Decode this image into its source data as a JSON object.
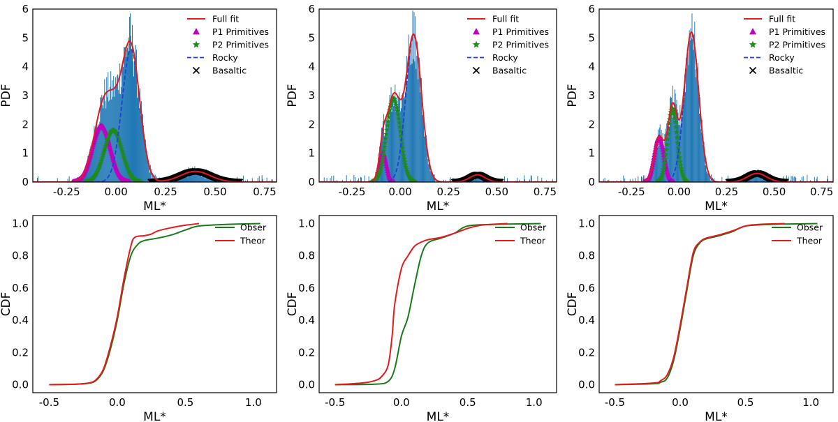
{
  "colors": {
    "full_fit": "#e41a1c",
    "p1": "#c000c0",
    "p2": "#1f8a1f",
    "rocky": "#1f3fd6",
    "basaltic": "#000000",
    "hist": "#1f77b4",
    "obser": "#1a7a1a",
    "theor": "#e41a1c"
  },
  "chart_data": [
    {
      "type": "area",
      "panel": "top-left",
      "xlabel": "ML*",
      "ylabel": "PDF",
      "xlim": [
        -0.42,
        0.81
      ],
      "ylim": [
        0,
        6
      ],
      "xticks": [
        "-0.25",
        "0.00",
        "0.25",
        "0.50",
        "0.75"
      ],
      "xtick_values": [
        -0.25,
        0,
        0.25,
        0.5,
        0.75
      ],
      "yticks": [
        "0",
        "1",
        "2",
        "3",
        "4",
        "5",
        "6"
      ],
      "ytick_values": [
        0,
        1,
        2,
        3,
        4,
        5,
        6
      ],
      "legend": {
        "placement": "top-right",
        "entries": [
          "Full fit",
          "P1 Primitives",
          "P2 Primitives",
          "Rocky",
          "Basaltic"
        ]
      },
      "components": [
        {
          "name": "P1 Primitives",
          "mu": -0.075,
          "sigma": 0.045,
          "amp": 1.95
        },
        {
          "name": "P2 Primitives",
          "mu": -0.015,
          "sigma": 0.045,
          "amp": 1.8
        },
        {
          "name": "Rocky",
          "mu": 0.075,
          "sigma": 0.045,
          "amp": 4.6
        },
        {
          "name": "Basaltic",
          "mu": 0.4,
          "sigma": 0.075,
          "amp": 0.37
        }
      ],
      "histogram_peak": 5.85
    },
    {
      "type": "area",
      "panel": "top-middle",
      "xlabel": "ML*",
      "ylabel": "PDF",
      "xlim": [
        -0.42,
        0.81
      ],
      "ylim": [
        0,
        6
      ],
      "xticks": [
        "-0.25",
        "0.00",
        "0.25",
        "0.50",
        "0.75"
      ],
      "xtick_values": [
        -0.25,
        0,
        0.25,
        0.5,
        0.75
      ],
      "yticks": [
        "0",
        "1",
        "2",
        "3",
        "4",
        "5",
        "6"
      ],
      "ytick_values": [
        0,
        1,
        2,
        3,
        4,
        5,
        6
      ],
      "legend": {
        "placement": "top-right",
        "entries": [
          "Full fit",
          "P1 Primitives",
          "P2 Primitives",
          "Rocky",
          "Basaltic"
        ]
      },
      "components": [
        {
          "name": "P1 Primitives",
          "mu": -0.09,
          "sigma": 0.018,
          "amp": 1.0
        },
        {
          "name": "P2 Primitives",
          "mu": -0.035,
          "sigma": 0.035,
          "amp": 2.9
        },
        {
          "name": "Rocky",
          "mu": 0.07,
          "sigma": 0.04,
          "amp": 5.1
        },
        {
          "name": "Basaltic",
          "mu": 0.4,
          "sigma": 0.04,
          "amp": 0.25
        }
      ],
      "histogram_peak": 5.9
    },
    {
      "type": "area",
      "panel": "top-right",
      "xlabel": "ML*",
      "ylabel": "PDF",
      "xlim": [
        -0.42,
        0.81
      ],
      "ylim": [
        0,
        6
      ],
      "xticks": [
        "-0.25",
        "0.00",
        "0.25",
        "0.50",
        "0.75"
      ],
      "xtick_values": [
        -0.25,
        0,
        0.25,
        0.5,
        0.75
      ],
      "yticks": [
        "0",
        "1",
        "2",
        "3",
        "4",
        "5",
        "6"
      ],
      "ytick_values": [
        0,
        1,
        2,
        3,
        4,
        5,
        6
      ],
      "legend": {
        "placement": "top-right",
        "entries": [
          "Full fit",
          "P1 Primitives",
          "P2 Primitives",
          "Rocky",
          "Basaltic"
        ]
      },
      "components": [
        {
          "name": "P1 Primitives",
          "mu": -0.105,
          "sigma": 0.025,
          "amp": 1.55
        },
        {
          "name": "P2 Primitives",
          "mu": -0.035,
          "sigma": 0.025,
          "amp": 2.55
        },
        {
          "name": "Rocky",
          "mu": 0.065,
          "sigma": 0.038,
          "amp": 5.2
        },
        {
          "name": "Basaltic",
          "mu": 0.41,
          "sigma": 0.05,
          "amp": 0.3
        }
      ],
      "histogram_peak": 5.85
    },
    {
      "type": "line",
      "panel": "bottom-left",
      "xlabel": "ML*",
      "ylabel": "CDF",
      "xlim": [
        -0.62,
        1.17
      ],
      "ylim": [
        -0.05,
        1.05
      ],
      "xticks": [
        "-0.5",
        "0.0",
        "0.5",
        "1.0"
      ],
      "xtick_values": [
        -0.5,
        0,
        0.5,
        1.0
      ],
      "yticks": [
        "0.0",
        "0.2",
        "0.4",
        "0.6",
        "0.8",
        "1.0"
      ],
      "ytick_values": [
        0,
        0.2,
        0.4,
        0.6,
        0.8,
        1.0
      ],
      "legend": {
        "placement": "top-right",
        "entries": [
          "Obser",
          "Theor"
        ]
      },
      "series": [
        {
          "name": "Obser",
          "x": [
            -0.5,
            -0.3,
            -0.2,
            -0.15,
            -0.1,
            -0.05,
            0,
            0.05,
            0.1,
            0.15,
            0.2,
            0.3,
            0.4,
            0.5,
            0.6,
            0.8,
            1.05
          ],
          "y": [
            0.0,
            0.003,
            0.01,
            0.03,
            0.09,
            0.22,
            0.4,
            0.63,
            0.8,
            0.87,
            0.895,
            0.91,
            0.93,
            0.96,
            0.985,
            0.995,
            1.0
          ]
        },
        {
          "name": "Theor",
          "x": [
            -0.5,
            -0.3,
            -0.2,
            -0.15,
            -0.1,
            -0.05,
            0,
            0.05,
            0.1,
            0.13,
            0.2,
            0.25,
            0.3,
            0.4,
            0.5,
            0.6
          ],
          "y": [
            0.0,
            0.003,
            0.012,
            0.035,
            0.1,
            0.24,
            0.42,
            0.66,
            0.86,
            0.915,
            0.925,
            0.935,
            0.955,
            0.975,
            0.99,
            1.0
          ]
        }
      ]
    },
    {
      "type": "line",
      "panel": "bottom-middle",
      "xlabel": "ML*",
      "ylabel": "CDF",
      "xlim": [
        -0.62,
        1.17
      ],
      "ylim": [
        -0.05,
        1.05
      ],
      "xticks": [
        "-0.5",
        "0.0",
        "0.5",
        "1.0"
      ],
      "xtick_values": [
        -0.5,
        0,
        0.5,
        1.0
      ],
      "yticks": [
        "0.0",
        "0.2",
        "0.4",
        "0.6",
        "0.8",
        "1.0"
      ],
      "ytick_values": [
        0,
        0.2,
        0.4,
        0.6,
        0.8,
        1.0
      ],
      "legend": {
        "placement": "top-right",
        "entries": [
          "Obser",
          "Theor"
        ]
      },
      "series": [
        {
          "name": "Obser",
          "x": [
            -0.5,
            -0.2,
            -0.1,
            -0.05,
            0,
            0.05,
            0.1,
            0.15,
            0.2,
            0.3,
            0.4,
            0.5,
            0.7,
            1.05
          ],
          "y": [
            0.0,
            0.003,
            0.02,
            0.1,
            0.3,
            0.42,
            0.62,
            0.8,
            0.88,
            0.91,
            0.94,
            0.985,
            0.995,
            1.0
          ]
        },
        {
          "name": "Theor",
          "x": [
            -0.5,
            -0.3,
            -0.2,
            -0.15,
            -0.1,
            -0.07,
            -0.05,
            0,
            0.05,
            0.1,
            0.15,
            0.2,
            0.3,
            0.4,
            0.5,
            0.6,
            0.8
          ],
          "y": [
            0.0,
            0.01,
            0.025,
            0.05,
            0.12,
            0.3,
            0.5,
            0.72,
            0.8,
            0.86,
            0.885,
            0.9,
            0.915,
            0.94,
            0.97,
            0.99,
            1.0
          ]
        }
      ]
    },
    {
      "type": "line",
      "panel": "bottom-right",
      "xlabel": "ML*",
      "ylabel": "CDF",
      "xlim": [
        -0.62,
        1.17
      ],
      "ylim": [
        -0.05,
        1.05
      ],
      "xticks": [
        "-0.5",
        "0.0",
        "0.5",
        "1.0"
      ],
      "xtick_values": [
        -0.5,
        0,
        0.5,
        1.0
      ],
      "yticks": [
        "0.0",
        "0.2",
        "0.4",
        "0.6",
        "0.8",
        "1.0"
      ],
      "ytick_values": [
        0,
        0.2,
        0.4,
        0.6,
        0.8,
        1.0
      ],
      "legend": {
        "placement": "top-right",
        "entries": [
          "Obser",
          "Theor"
        ]
      },
      "series": [
        {
          "name": "Obser",
          "x": [
            -0.5,
            -0.2,
            -0.15,
            -0.1,
            -0.05,
            0,
            0.05,
            0.1,
            0.15,
            0.2,
            0.3,
            0.4,
            0.5,
            0.7,
            1.05
          ],
          "y": [
            0.0,
            0.006,
            0.015,
            0.04,
            0.15,
            0.35,
            0.58,
            0.8,
            0.88,
            0.905,
            0.925,
            0.95,
            0.985,
            0.995,
            1.0
          ]
        },
        {
          "name": "Theor",
          "x": [
            -0.5,
            -0.2,
            -0.15,
            -0.1,
            -0.05,
            0,
            0.05,
            0.1,
            0.15,
            0.2,
            0.3,
            0.4,
            0.5,
            0.6,
            0.8
          ],
          "y": [
            0.0,
            0.01,
            0.025,
            0.06,
            0.17,
            0.37,
            0.6,
            0.82,
            0.885,
            0.91,
            0.93,
            0.955,
            0.985,
            0.995,
            1.0
          ]
        }
      ]
    }
  ]
}
